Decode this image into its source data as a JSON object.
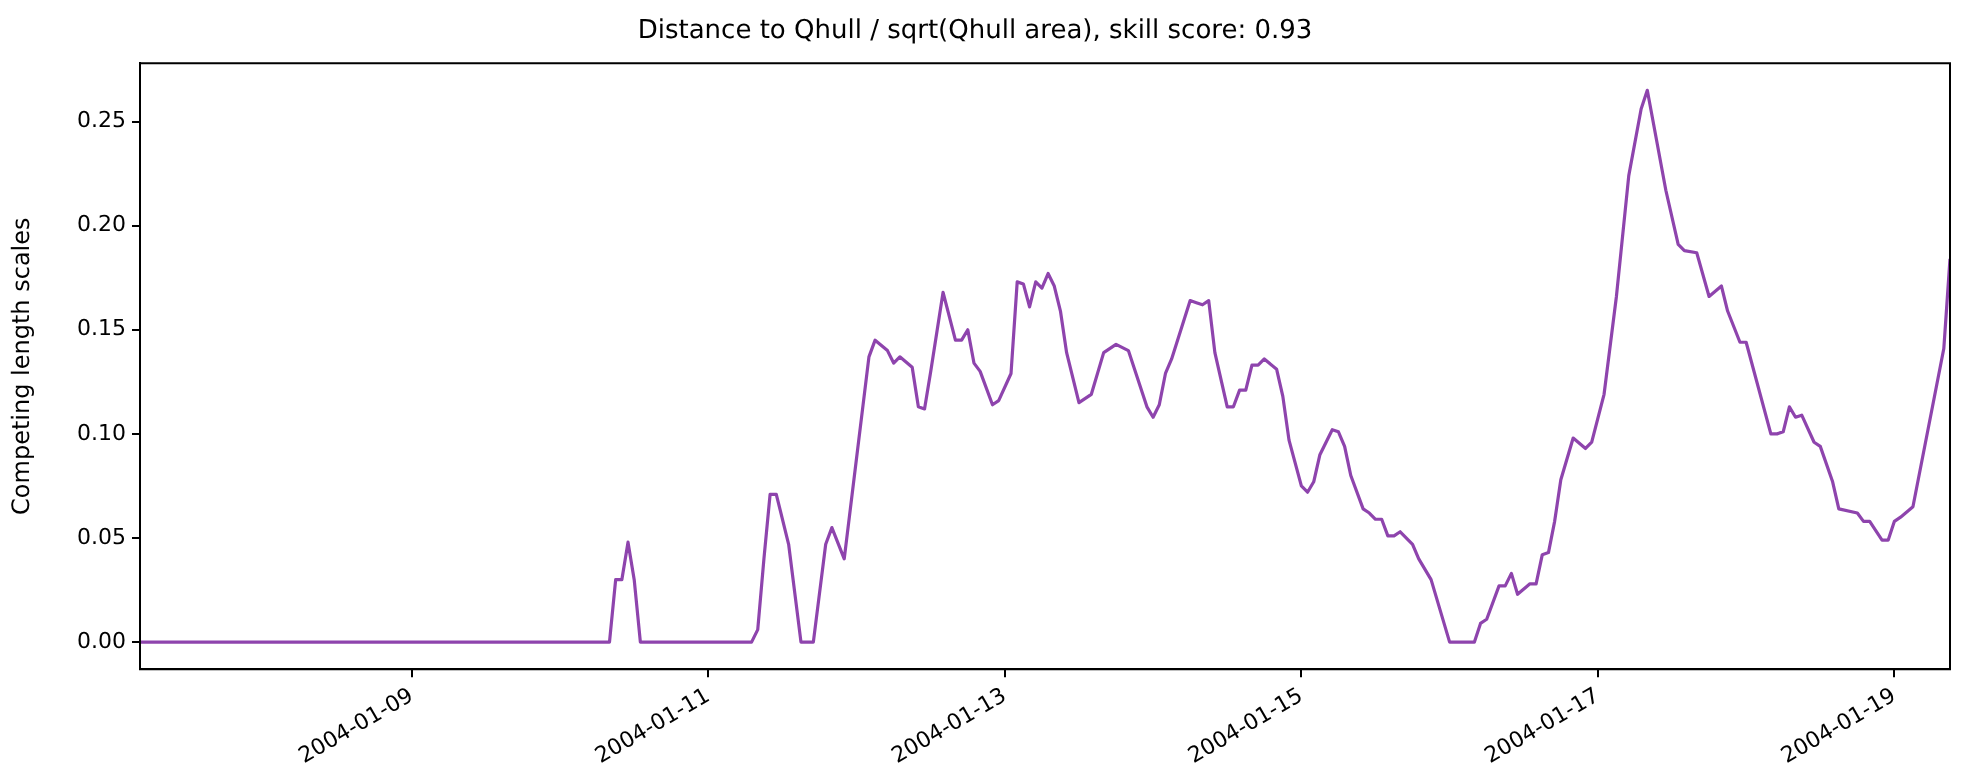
{
  "chart_data": {
    "type": "line",
    "title": "Distance to Qhull / sqrt(Qhull area), skill score: 0.93",
    "ylabel": "Competing length scales",
    "x": [
      "2004-01-07T04:00",
      "2004-01-10T08:00",
      "2004-01-10T09:00",
      "2004-01-10T10:00",
      "2004-01-10T11:00",
      "2004-01-10T12:00",
      "2004-01-10T13:00",
      "2004-01-11T07:00",
      "2004-01-11T08:00",
      "2004-01-11T09:00",
      "2004-01-11T10:00",
      "2004-01-11T11:00",
      "2004-01-11T13:00",
      "2004-01-11T15:00",
      "2004-01-11T17:00",
      "2004-01-11T19:00",
      "2004-01-11T20:00",
      "2004-01-11T22:00",
      "2004-01-12T02:00",
      "2004-01-12T03:00",
      "2004-01-12T05:00",
      "2004-01-12T06:00",
      "2004-01-12T07:00",
      "2004-01-12T09:00",
      "2004-01-12T10:00",
      "2004-01-12T11:00",
      "2004-01-12T12:00",
      "2004-01-12T14:00",
      "2004-01-12T16:00",
      "2004-01-12T17:00",
      "2004-01-12T18:00",
      "2004-01-12T19:00",
      "2004-01-12T20:00",
      "2004-01-12T22:00",
      "2004-01-12T23:00",
      "2004-01-13T01:00",
      "2004-01-13T02:00",
      "2004-01-13T03:00",
      "2004-01-13T04:00",
      "2004-01-13T05:00",
      "2004-01-13T06:00",
      "2004-01-13T07:00",
      "2004-01-13T08:00",
      "2004-01-13T09:00",
      "2004-01-13T10:00",
      "2004-01-13T12:00",
      "2004-01-13T14:00",
      "2004-01-13T16:00",
      "2004-01-13T18:00",
      "2004-01-13T20:00",
      "2004-01-13T21:00",
      "2004-01-13T23:00",
      "2004-01-14T00:00",
      "2004-01-14T01:00",
      "2004-01-14T02:00",
      "2004-01-14T03:00",
      "2004-01-14T06:00",
      "2004-01-14T07:00",
      "2004-01-14T08:00",
      "2004-01-14T09:00",
      "2004-01-14T10:00",
      "2004-01-14T12:00",
      "2004-01-14T13:00",
      "2004-01-14T14:00",
      "2004-01-14T15:00",
      "2004-01-14T16:00",
      "2004-01-14T17:00",
      "2004-01-14T18:00",
      "2004-01-14T20:00",
      "2004-01-14T21:00",
      "2004-01-14T22:00",
      "2004-01-15T00:00",
      "2004-01-15T01:00",
      "2004-01-15T02:00",
      "2004-01-15T03:00",
      "2004-01-15T05:00",
      "2004-01-15T06:00",
      "2004-01-15T07:00",
      "2004-01-15T08:00",
      "2004-01-15T10:00",
      "2004-01-15T11:00",
      "2004-01-15T12:00",
      "2004-01-15T13:00",
      "2004-01-15T14:00",
      "2004-01-15T15:00",
      "2004-01-15T16:00",
      "2004-01-15T18:00",
      "2004-01-15T19:00",
      "2004-01-15T21:00",
      "2004-01-16T00:00",
      "2004-01-16T04:00",
      "2004-01-16T05:00",
      "2004-01-16T06:00",
      "2004-01-16T08:00",
      "2004-01-16T09:00",
      "2004-01-16T10:00",
      "2004-01-16T11:00",
      "2004-01-16T13:00",
      "2004-01-16T14:00",
      "2004-01-16T15:00",
      "2004-01-16T16:00",
      "2004-01-16T17:00",
      "2004-01-16T18:00",
      "2004-01-16T20:00",
      "2004-01-16T22:00",
      "2004-01-16T23:00",
      "2004-01-17T01:00",
      "2004-01-17T03:00",
      "2004-01-17T05:00",
      "2004-01-17T07:00",
      "2004-01-17T08:00",
      "2004-01-17T11:00",
      "2004-01-17T13:00",
      "2004-01-17T14:00",
      "2004-01-17T16:00",
      "2004-01-17T18:00",
      "2004-01-17T20:00",
      "2004-01-17T21:00",
      "2004-01-17T23:00",
      "2004-01-18T00:00",
      "2004-01-18T04:00",
      "2004-01-18T05:00",
      "2004-01-18T06:00",
      "2004-01-18T07:00",
      "2004-01-18T08:00",
      "2004-01-18T09:00",
      "2004-01-18T11:00",
      "2004-01-18T12:00",
      "2004-01-18T14:00",
      "2004-01-18T15:00",
      "2004-01-18T18:00",
      "2004-01-18T19:00",
      "2004-01-18T20:00",
      "2004-01-18T22:00",
      "2004-01-18T23:00",
      "2004-01-19T00:00",
      "2004-01-19T01:00",
      "2004-01-19T03:00",
      "2004-01-19T08:00",
      "2004-01-19T09:00"
    ],
    "series": [
      {
        "color": "#8e44ad",
        "values": [
          0,
          0,
          0.03,
          0.03,
          0.048,
          0.03,
          0,
          0,
          0.006,
          0.04,
          0.071,
          0.071,
          0.047,
          0,
          0,
          0.047,
          0.055,
          0.04,
          0.137,
          0.145,
          0.14,
          0.134,
          0.137,
          0.132,
          0.113,
          0.112,
          0.13,
          0.168,
          0.145,
          0.145,
          0.15,
          0.134,
          0.13,
          0.114,
          0.116,
          0.129,
          0.173,
          0.172,
          0.161,
          0.173,
          0.17,
          0.177,
          0.171,
          0.159,
          0.139,
          0.115,
          0.119,
          0.139,
          0.143,
          0.14,
          0.131,
          0.113,
          0.108,
          0.114,
          0.129,
          0.136,
          0.164,
          0.163,
          0.162,
          0.164,
          0.139,
          0.113,
          0.113,
          0.121,
          0.121,
          0.133,
          0.133,
          0.136,
          0.131,
          0.118,
          0.097,
          0.075,
          0.072,
          0.077,
          0.09,
          0.102,
          0.101,
          0.094,
          0.08,
          0.064,
          0.062,
          0.059,
          0.059,
          0.051,
          0.051,
          0.053,
          0.047,
          0.04,
          0.03,
          0,
          0,
          0.009,
          0.011,
          0.027,
          0.027,
          0.033,
          0.023,
          0.028,
          0.028,
          0.042,
          0.043,
          0.058,
          0.078,
          0.098,
          0.093,
          0.096,
          0.119,
          0.166,
          0.224,
          0.256,
          0.265,
          0.217,
          0.191,
          0.188,
          0.187,
          0.166,
          0.171,
          0.159,
          0.144,
          0.144,
          0.1,
          0.1,
          0.101,
          0.113,
          0.108,
          0.109,
          0.096,
          0.094,
          0.077,
          0.064,
          0.062,
          0.058,
          0.058,
          0.049,
          0.049,
          0.058,
          0.06,
          0.065,
          0.141,
          0.184
        ]
      }
    ],
    "xlim": [
      "2004-01-07T04:00",
      "2004-01-19T09:00"
    ],
    "xticks": [
      "2004-01-09",
      "2004-01-11",
      "2004-01-13",
      "2004-01-15",
      "2004-01-17",
      "2004-01-19"
    ],
    "ylim": [
      -0.013,
      0.278
    ],
    "yticks": [
      {
        "value": 0,
        "label": "0.00"
      },
      {
        "value": 0.05,
        "label": "0.05"
      },
      {
        "value": 0.1,
        "label": "0.10"
      },
      {
        "value": 0.15,
        "label": "0.15"
      },
      {
        "value": 0.2,
        "label": "0.20"
      },
      {
        "value": 0.25,
        "label": "0.25"
      }
    ],
    "grid": false,
    "legend": false,
    "marker": "none",
    "line_style": "solid"
  }
}
